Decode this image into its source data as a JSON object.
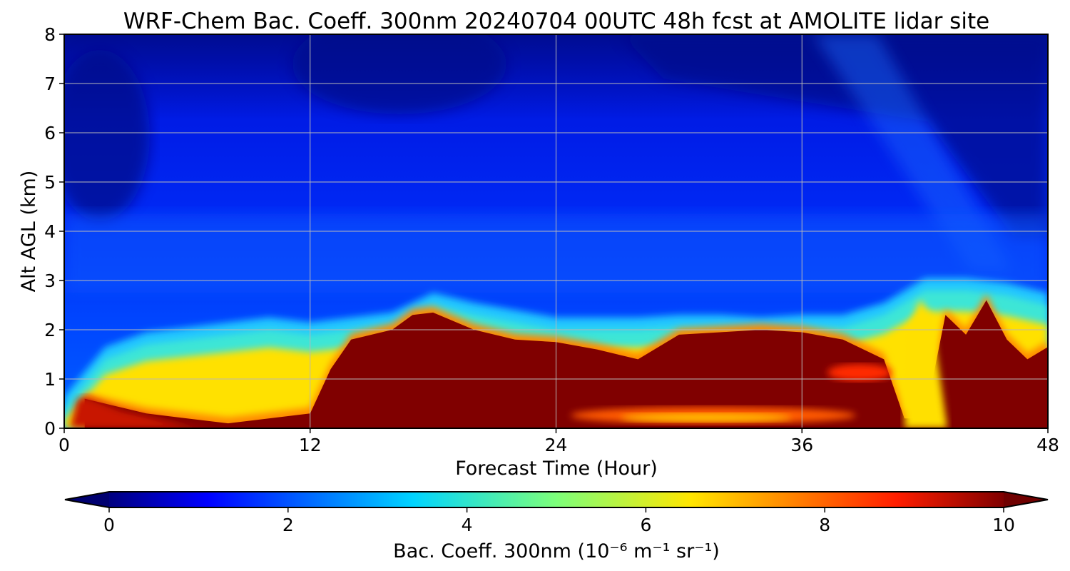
{
  "chart_data": {
    "type": "heatmap",
    "title": "WRF-Chem Bac. Coeff. 300nm  20240704 00UTC 48h fcst at AMOLITE lidar site",
    "xlabel": "Forecast Time (Hour)",
    "ylabel": "Alt AGL (km)",
    "xlim": [
      0,
      48
    ],
    "ylim": [
      0,
      8
    ],
    "x_ticks": [
      "0",
      "12",
      "24",
      "36",
      "48"
    ],
    "y_ticks": [
      "0",
      "1",
      "2",
      "3",
      "4",
      "5",
      "6",
      "7",
      "8"
    ],
    "grid": true,
    "colormap": "jet",
    "colorbar": {
      "label": "Bac. Coeff. 300nm  (10⁻⁶ m⁻¹ sr⁻¹)",
      "range": [
        0,
        10
      ],
      "ticks": [
        "0",
        "2",
        "4",
        "6",
        "8",
        "10"
      ],
      "extend": "both"
    },
    "boundary_layer_top_km": {
      "hours": [
        0,
        2,
        4,
        6,
        8,
        10,
        12,
        14,
        16,
        18,
        20,
        22,
        24,
        26,
        28,
        30,
        32,
        34,
        36,
        38,
        40,
        42,
        44,
        46,
        48
      ],
      "values": [
        0.4,
        1.4,
        1.7,
        1.8,
        1.9,
        2.0,
        1.9,
        2.0,
        2.1,
        2.5,
        2.3,
        2.15,
        2.0,
        2.0,
        2.0,
        2.05,
        2.05,
        2.0,
        2.05,
        2.05,
        2.3,
        2.8,
        2.8,
        2.7,
        2.5
      ]
    },
    "high_core_top_km": {
      "hours": [
        1,
        4,
        8,
        12,
        13,
        14,
        15,
        16,
        17,
        18,
        20,
        22,
        24,
        26,
        28,
        30,
        32,
        34,
        36,
        38,
        40,
        41,
        42,
        43,
        44,
        45,
        46,
        47,
        48
      ],
      "values": [
        0.6,
        0.3,
        0.1,
        0.3,
        1.2,
        1.8,
        1.9,
        2.0,
        2.3,
        2.35,
        2.0,
        1.8,
        1.75,
        1.6,
        1.4,
        1.9,
        1.95,
        2.0,
        1.95,
        1.8,
        1.4,
        0.2,
        0.2,
        2.3,
        1.9,
        2.6,
        1.8,
        1.4,
        1.65
      ]
    }
  }
}
